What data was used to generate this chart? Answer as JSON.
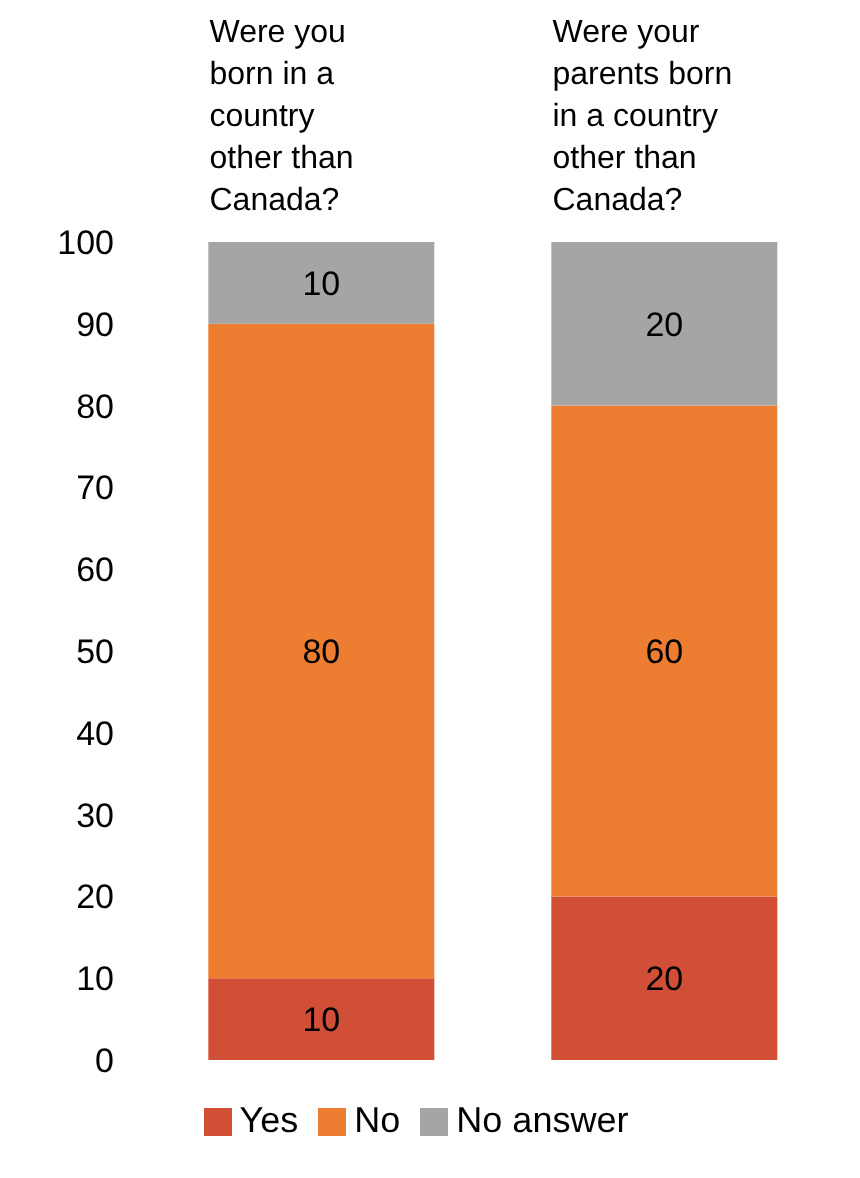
{
  "chart_data": {
    "type": "bar",
    "stacked": true,
    "categories": [
      "Were you born in a country other than Canada?",
      "Were your parents born in a country other than Canada?"
    ],
    "series": [
      {
        "name": "Yes",
        "color": "#d04f36",
        "values": [
          10,
          20
        ]
      },
      {
        "name": "No",
        "color": "#ed7d31",
        "values": [
          80,
          60
        ]
      },
      {
        "name": "No answer",
        "color": "#a5a5a5",
        "values": [
          10,
          20
        ]
      }
    ],
    "ylim": [
      0,
      100
    ],
    "yticks": [
      0,
      10,
      20,
      30,
      40,
      50,
      60,
      70,
      80,
      90,
      100
    ],
    "data_labels": true,
    "grid": false,
    "legend": "bottom"
  }
}
